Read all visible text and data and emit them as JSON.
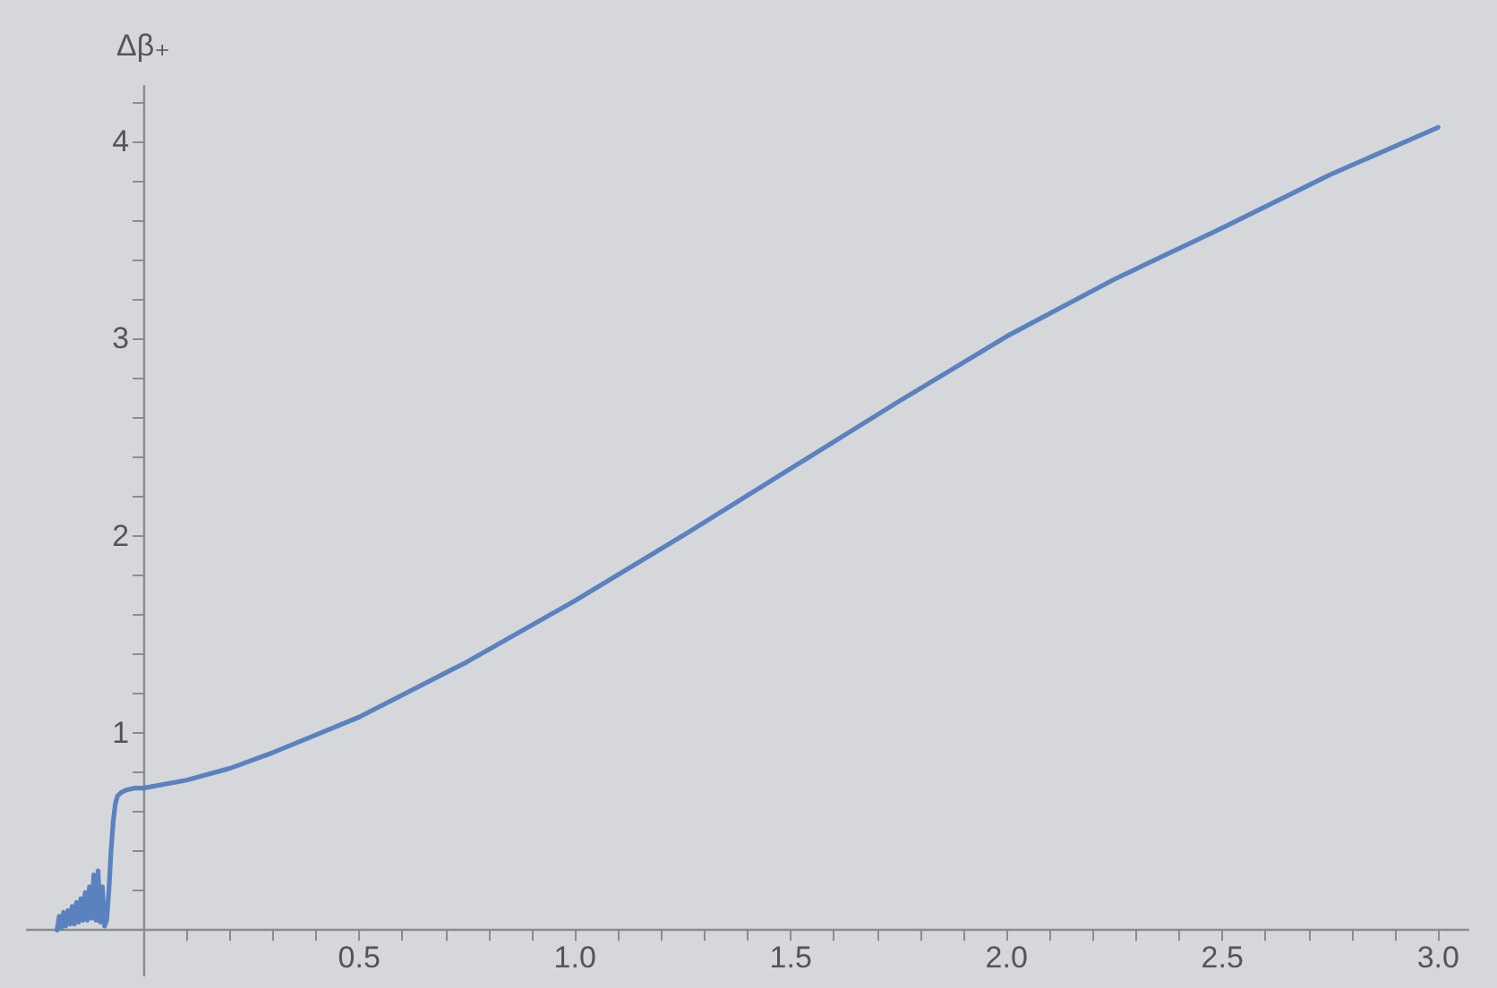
{
  "chart_data": {
    "type": "line",
    "ylabel": "Δβ₊",
    "grid": false,
    "marker": "none",
    "line_style": "solid",
    "x": [
      -0.2,
      -0.195,
      -0.19,
      -0.185,
      -0.18,
      -0.175,
      -0.17,
      -0.165,
      -0.16,
      -0.155,
      -0.15,
      -0.145,
      -0.14,
      -0.135,
      -0.13,
      -0.125,
      -0.12,
      -0.115,
      -0.11,
      -0.105,
      -0.1,
      -0.095,
      -0.09,
      -0.085,
      -0.08,
      -0.075,
      -0.07,
      -0.065,
      -0.06,
      -0.05,
      -0.04,
      -0.02,
      0,
      0.1,
      0.2,
      0.3,
      0.4,
      0.5,
      0.75,
      1.0,
      1.25,
      1.5,
      1.75,
      2.0,
      2.25,
      2.5,
      2.75,
      3.0
    ],
    "series": [
      {
        "color": "#5a82bf",
        "values": [
          0,
          0.07,
          0.01,
          0.09,
          0.02,
          0.1,
          0.03,
          0.12,
          0.03,
          0.14,
          0.04,
          0.16,
          0.05,
          0.19,
          0.05,
          0.22,
          0.06,
          0.28,
          0.05,
          0.3,
          0.04,
          0.22,
          0.02,
          0.05,
          0.2,
          0.4,
          0.55,
          0.64,
          0.68,
          0.7,
          0.71,
          0.72,
          0.72,
          0.76,
          0.82,
          0.9,
          0.99,
          1.08,
          1.36,
          1.67,
          2.0,
          2.34,
          2.68,
          3.01,
          3.3,
          3.56,
          3.83,
          4.07
        ]
      }
    ],
    "xlim": [
      -0.27,
      3.07
    ],
    "ylim": [
      -0.23,
      4.28
    ],
    "xticks": [
      {
        "value": 0.1,
        "label": null
      },
      {
        "value": 0.2,
        "label": null
      },
      {
        "value": 0.3,
        "label": null
      },
      {
        "value": 0.4,
        "label": null
      },
      {
        "value": 0.5,
        "label": "0.5"
      },
      {
        "value": 0.6,
        "label": null
      },
      {
        "value": 0.7,
        "label": null
      },
      {
        "value": 0.8,
        "label": null
      },
      {
        "value": 0.9,
        "label": null
      },
      {
        "value": 1,
        "label": "1.0"
      },
      {
        "value": 1.1,
        "label": null
      },
      {
        "value": 1.2,
        "label": null
      },
      {
        "value": 1.3,
        "label": null
      },
      {
        "value": 1.4,
        "label": null
      },
      {
        "value": 1.5,
        "label": "1.5"
      },
      {
        "value": 1.6,
        "label": null
      },
      {
        "value": 1.7,
        "label": null
      },
      {
        "value": 1.8,
        "label": null
      },
      {
        "value": 1.9,
        "label": null
      },
      {
        "value": 2,
        "label": "2.0"
      },
      {
        "value": 2.1,
        "label": null
      },
      {
        "value": 2.2,
        "label": null
      },
      {
        "value": 2.3,
        "label": null
      },
      {
        "value": 2.4,
        "label": null
      },
      {
        "value": 2.5,
        "label": "2.5"
      },
      {
        "value": 2.6,
        "label": null
      },
      {
        "value": 2.7,
        "label": null
      },
      {
        "value": 2.8,
        "label": null
      },
      {
        "value": 2.9,
        "label": null
      },
      {
        "value": 3,
        "label": "3.0"
      }
    ],
    "yticks": [
      {
        "value": 0.2,
        "label": null
      },
      {
        "value": 0.4,
        "label": null
      },
      {
        "value": 0.6,
        "label": null
      },
      {
        "value": 0.8,
        "label": null
      },
      1,
      {
        "value": 1.2,
        "label": null
      },
      {
        "value": 1.4,
        "label": null
      },
      {
        "value": 1.6,
        "label": null
      },
      {
        "value": 1.8,
        "label": null
      },
      2,
      {
        "value": 2.2,
        "label": null
      },
      {
        "value": 2.4,
        "label": null
      },
      {
        "value": 2.6,
        "label": null
      },
      {
        "value": 2.8,
        "label": null
      },
      3,
      {
        "value": 3.2,
        "label": null
      },
      {
        "value": 3.4,
        "label": null
      },
      {
        "value": 3.6,
        "label": null
      },
      {
        "value": 3.8,
        "label": null
      },
      4,
      {
        "value": 4.2,
        "label": null
      }
    ]
  }
}
